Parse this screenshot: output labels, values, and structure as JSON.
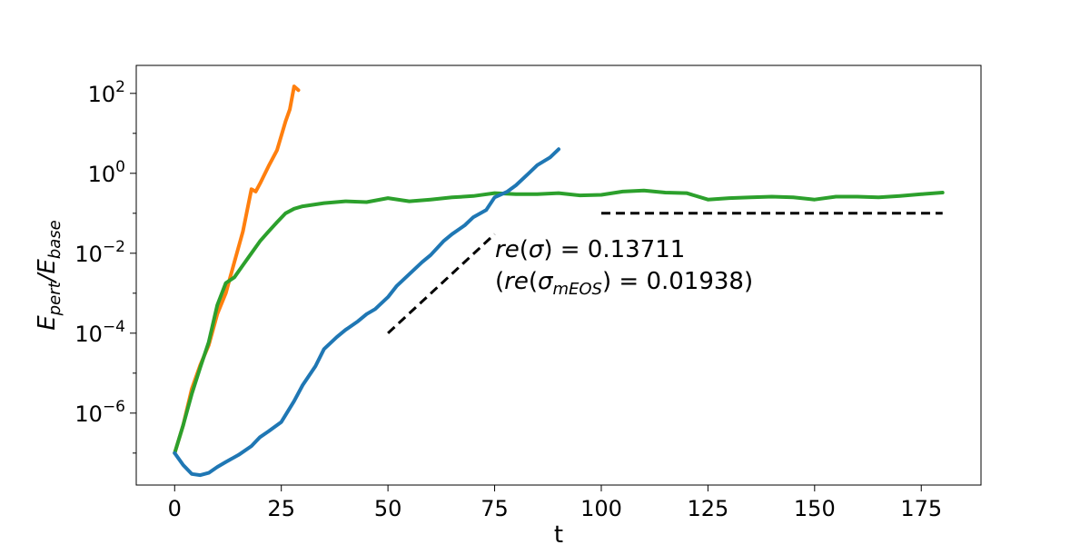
{
  "chart_data": {
    "type": "line",
    "title": "",
    "xlabel": "t",
    "ylabel_main": "E",
    "ylabel_sub1": "pert",
    "ylabel_mid": "/E",
    "ylabel_sub2": "base",
    "x_scale": "linear",
    "y_scale": "log",
    "xlim": [
      -9,
      189
    ],
    "ylim_log10": [
      -7.8,
      2.7
    ],
    "grid": false,
    "x_ticks": [
      {
        "value": 0,
        "label": "0"
      },
      {
        "value": 25,
        "label": "25"
      },
      {
        "value": 50,
        "label": "50"
      },
      {
        "value": 75,
        "label": "75"
      },
      {
        "value": 100,
        "label": "100"
      },
      {
        "value": 125,
        "label": "125"
      },
      {
        "value": 150,
        "label": "150"
      },
      {
        "value": 175,
        "label": "175"
      }
    ],
    "y_ticks": [
      {
        "log10": 2,
        "base": "10",
        "exp": "2"
      },
      {
        "log10": 0,
        "base": "10",
        "exp": "0"
      },
      {
        "log10": -2,
        "base": "10",
        "exp": "−2"
      },
      {
        "log10": -4,
        "base": "10",
        "exp": "−4"
      },
      {
        "log10": -6,
        "base": "10",
        "exp": "−6"
      }
    ],
    "series": [
      {
        "color": "#ff7f0e",
        "x": [
          0,
          2,
          4,
          6,
          8,
          10,
          12,
          14,
          16,
          18,
          19,
          20,
          22,
          24,
          26,
          27,
          28,
          29
        ],
        "y": [
          1e-07,
          5e-07,
          4e-06,
          1.6e-05,
          5e-05,
          0.0003,
          0.001,
          0.006,
          0.035,
          0.4,
          0.35,
          0.55,
          1.5,
          3.8,
          20,
          40,
          150,
          120
        ]
      },
      {
        "color": "#2ca02c",
        "x": [
          0,
          2,
          4,
          6,
          8,
          10,
          12,
          14,
          16,
          18,
          20,
          22,
          24,
          26,
          28,
          30,
          35,
          40,
          45,
          50,
          55,
          60,
          65,
          70,
          75,
          80,
          85,
          90,
          95,
          100,
          105,
          110,
          115,
          120,
          125,
          130,
          135,
          140,
          145,
          150,
          155,
          160,
          165,
          170,
          175,
          180
        ],
        "y": [
          1e-07,
          5e-07,
          3e-06,
          1.4e-05,
          6e-05,
          0.0005,
          0.0018,
          0.0025,
          0.005,
          0.01,
          0.02,
          0.035,
          0.06,
          0.1,
          0.13,
          0.15,
          0.18,
          0.2,
          0.19,
          0.24,
          0.2,
          0.22,
          0.25,
          0.27,
          0.32,
          0.3,
          0.3,
          0.32,
          0.28,
          0.29,
          0.35,
          0.37,
          0.33,
          0.32,
          0.22,
          0.24,
          0.25,
          0.26,
          0.25,
          0.22,
          0.26,
          0.26,
          0.25,
          0.27,
          0.3,
          0.33
        ]
      },
      {
        "color": "#1f77b4",
        "x": [
          0,
          2,
          4,
          6,
          8,
          10,
          12,
          15,
          18,
          20,
          22,
          25,
          28,
          30,
          33,
          35,
          38,
          40,
          43,
          45,
          47,
          50,
          52,
          55,
          58,
          60,
          63,
          65,
          68,
          70,
          73,
          75,
          78,
          80,
          83,
          85,
          88,
          90
        ],
        "y": [
          1e-07,
          5e-08,
          3e-08,
          2.8e-08,
          3.2e-08,
          4.5e-08,
          6e-08,
          9e-08,
          1.5e-07,
          2.5e-07,
          3.5e-07,
          6e-07,
          2e-06,
          5e-06,
          1.5e-05,
          4e-05,
          8e-05,
          0.00012,
          0.0002,
          0.0003,
          0.0004,
          0.0008,
          0.0015,
          0.003,
          0.006,
          0.009,
          0.02,
          0.03,
          0.05,
          0.08,
          0.12,
          0.25,
          0.35,
          0.5,
          1.0,
          1.6,
          2.5,
          4.0
        ]
      }
    ],
    "reference_lines": [
      {
        "x": [
          50,
          75
        ],
        "y": [
          0.0001,
          0.03
        ],
        "color": "#000000",
        "style": "dashed"
      },
      {
        "x": [
          100,
          180
        ],
        "y": [
          0.1,
          0.1
        ],
        "color": "#000000",
        "style": "dashed"
      }
    ],
    "annotations": [
      {
        "text": "re(σ) = 0.13711",
        "x": 76,
        "log10y": -2.05
      },
      {
        "text": "(re(σ_mEOS) = 0.01938)",
        "x": 76,
        "log10y": -2.85
      }
    ]
  }
}
